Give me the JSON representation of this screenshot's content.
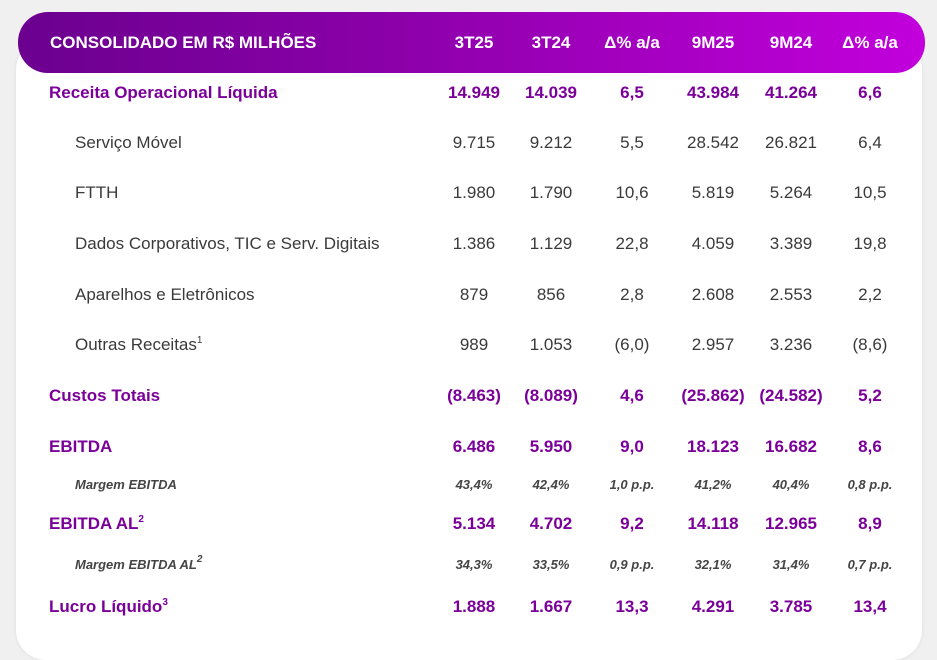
{
  "header": {
    "title": "CONSOLIDADO EM R$ MILHÕES",
    "columns": [
      "3T25",
      "3T24",
      "Δ% a/a",
      "9M25",
      "9M24",
      "Δ% a/a"
    ]
  },
  "rows": [
    {
      "label": "Receita Operacional Líquida",
      "sup": "",
      "type": "main",
      "values": [
        "14.949",
        "14.039",
        "6,5",
        "43.984",
        "41.264",
        "6,6"
      ]
    },
    {
      "label": "Serviço Móvel",
      "sup": "",
      "type": "sub",
      "values": [
        "9.715",
        "9.212",
        "5,5",
        "28.542",
        "26.821",
        "6,4"
      ]
    },
    {
      "label": "FTTH",
      "sup": "",
      "type": "sub",
      "values": [
        "1.980",
        "1.790",
        "10,6",
        "5.819",
        "5.264",
        "10,5"
      ]
    },
    {
      "label": "Dados Corporativos, TIC e Serv. Digitais",
      "sup": "",
      "type": "sub",
      "values": [
        "1.386",
        "1.129",
        "22,8",
        "4.059",
        "3.389",
        "19,8"
      ]
    },
    {
      "label": "Aparelhos e Eletrônicos",
      "sup": "",
      "type": "sub",
      "values": [
        "879",
        "856",
        "2,8",
        "2.608",
        "2.553",
        "2,2"
      ]
    },
    {
      "label": "Outras Receitas",
      "sup": "1",
      "type": "sub",
      "values": [
        "989",
        "1.053",
        "(6,0)",
        "2.957",
        "3.236",
        "(8,6)"
      ]
    },
    {
      "label": "Custos Totais",
      "sup": "",
      "type": "main",
      "values": [
        "(8.463)",
        "(8.089)",
        "4,6",
        "(25.862)",
        "(24.582)",
        "5,2"
      ]
    },
    {
      "label": "EBITDA",
      "sup": "",
      "type": "main",
      "values": [
        "6.486",
        "5.950",
        "9,0",
        "18.123",
        "16.682",
        "8,6"
      ]
    },
    {
      "label": "Margem EBITDA",
      "sup": "",
      "type": "margin",
      "values": [
        "43,4%",
        "42,4%",
        "1,0 p.p.",
        "41,2%",
        "40,4%",
        "0,8 p.p."
      ]
    },
    {
      "label": "EBITDA AL",
      "sup": "2",
      "type": "main",
      "values": [
        "5.134",
        "4.702",
        "9,2",
        "14.118",
        "12.965",
        "8,9"
      ]
    },
    {
      "label": "Margem EBITDA AL",
      "sup": "2",
      "type": "margin",
      "values": [
        "34,3%",
        "33,5%",
        "0,9 p.p.",
        "32,1%",
        "31,4%",
        "0,7 p.p."
      ]
    },
    {
      "label": "Lucro Líquido",
      "sup": "3",
      "type": "main",
      "values": [
        "1.888",
        "1.667",
        "13,3",
        "4.291",
        "3.785",
        "13,4"
      ]
    }
  ],
  "colors": {
    "accent": "#7b0099",
    "header_start": "#6b008f",
    "header_end": "#c200dc"
  }
}
